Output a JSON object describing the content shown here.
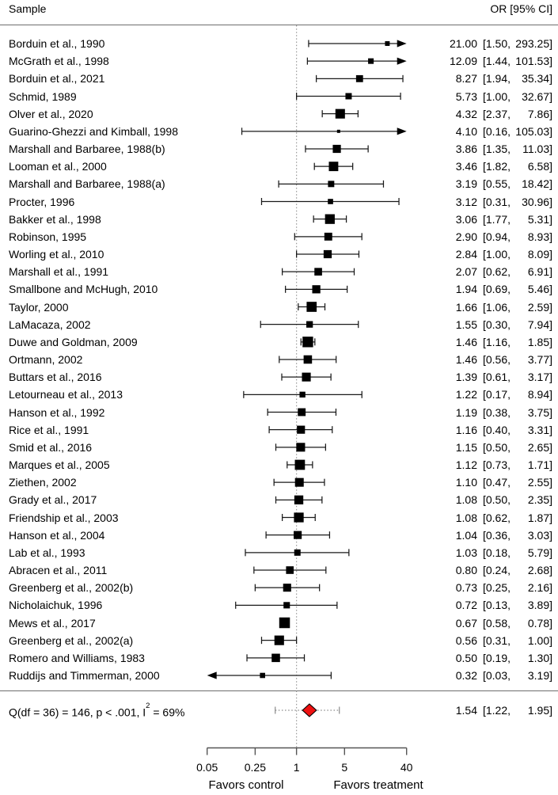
{
  "header": {
    "sample": "Sample",
    "or_ci": "OR [95% CI]"
  },
  "chart_data": {
    "type": "forest",
    "effect_measure": "OR",
    "x_scale": "log",
    "xlim": [
      0.05,
      40
    ],
    "x_ticks": [
      0.05,
      0.25,
      1,
      5,
      40
    ],
    "ref_line": 1,
    "x_axis_labels": {
      "left": "Favors control",
      "right": "Favors treatment"
    },
    "studies": [
      {
        "label": "Borduin et al., 1990",
        "or": 21.0,
        "ci_low": 1.5,
        "ci_high": 293.25
      },
      {
        "label": "McGrath et al., 1998",
        "or": 12.09,
        "ci_low": 1.44,
        "ci_high": 101.53
      },
      {
        "label": "Borduin et al., 2021",
        "or": 8.27,
        "ci_low": 1.94,
        "ci_high": 35.34
      },
      {
        "label": "Schmid, 1989",
        "or": 5.73,
        "ci_low": 1.0,
        "ci_high": 32.67
      },
      {
        "label": "Olver et al., 2020",
        "or": 4.32,
        "ci_low": 2.37,
        "ci_high": 7.86
      },
      {
        "label": "Guarino-Ghezzi and Kimball, 1998",
        "or": 4.1,
        "ci_low": 0.16,
        "ci_high": 105.03
      },
      {
        "label": "Marshall and Barbaree, 1988(b)",
        "or": 3.86,
        "ci_low": 1.35,
        "ci_high": 11.03
      },
      {
        "label": "Looman et al., 2000",
        "or": 3.46,
        "ci_low": 1.82,
        "ci_high": 6.58
      },
      {
        "label": "Marshall and Barbaree, 1988(a)",
        "or": 3.19,
        "ci_low": 0.55,
        "ci_high": 18.42
      },
      {
        "label": "Procter, 1996",
        "or": 3.12,
        "ci_low": 0.31,
        "ci_high": 30.96
      },
      {
        "label": "Bakker et al., 1998",
        "or": 3.06,
        "ci_low": 1.77,
        "ci_high": 5.31
      },
      {
        "label": "Robinson, 1995",
        "or": 2.9,
        "ci_low": 0.94,
        "ci_high": 8.93
      },
      {
        "label": "Worling et al., 2010",
        "or": 2.84,
        "ci_low": 1.0,
        "ci_high": 8.09
      },
      {
        "label": "Marshall et al., 1991",
        "or": 2.07,
        "ci_low": 0.62,
        "ci_high": 6.91
      },
      {
        "label": "Smallbone and McHugh, 2010",
        "or": 1.94,
        "ci_low": 0.69,
        "ci_high": 5.46
      },
      {
        "label": "Taylor, 2000",
        "or": 1.66,
        "ci_low": 1.06,
        "ci_high": 2.59
      },
      {
        "label": "LaMacaza, 2002",
        "or": 1.55,
        "ci_low": 0.3,
        "ci_high": 7.94
      },
      {
        "label": "Duwe and Goldman, 2009",
        "or": 1.46,
        "ci_low": 1.16,
        "ci_high": 1.85
      },
      {
        "label": "Ortmann, 2002",
        "or": 1.46,
        "ci_low": 0.56,
        "ci_high": 3.77
      },
      {
        "label": "Buttars et al., 2016",
        "or": 1.39,
        "ci_low": 0.61,
        "ci_high": 3.17
      },
      {
        "label": "Letourneau et al., 2013",
        "or": 1.22,
        "ci_low": 0.17,
        "ci_high": 8.94
      },
      {
        "label": "Hanson et al., 1992",
        "or": 1.19,
        "ci_low": 0.38,
        "ci_high": 3.75
      },
      {
        "label": "Rice et al., 1991",
        "or": 1.16,
        "ci_low": 0.4,
        "ci_high": 3.31
      },
      {
        "label": "Smid et al., 2016",
        "or": 1.15,
        "ci_low": 0.5,
        "ci_high": 2.65
      },
      {
        "label": "Marques et al., 2005",
        "or": 1.12,
        "ci_low": 0.73,
        "ci_high": 1.71
      },
      {
        "label": "Ziethen, 2002",
        "or": 1.1,
        "ci_low": 0.47,
        "ci_high": 2.55
      },
      {
        "label": "Grady et al., 2017",
        "or": 1.08,
        "ci_low": 0.5,
        "ci_high": 2.35
      },
      {
        "label": "Friendship et al., 2003",
        "or": 1.08,
        "ci_low": 0.62,
        "ci_high": 1.87
      },
      {
        "label": "Hanson et al., 2004",
        "or": 1.04,
        "ci_low": 0.36,
        "ci_high": 3.03
      },
      {
        "label": "Lab et al., 1993",
        "or": 1.03,
        "ci_low": 0.18,
        "ci_high": 5.79
      },
      {
        "label": "Abracen et al., 2011",
        "or": 0.8,
        "ci_low": 0.24,
        "ci_high": 2.68
      },
      {
        "label": "Greenberg et al., 2002(b)",
        "or": 0.73,
        "ci_low": 0.25,
        "ci_high": 2.16
      },
      {
        "label": "Nicholaichuk, 1996",
        "or": 0.72,
        "ci_low": 0.13,
        "ci_high": 3.89
      },
      {
        "label": "Mews et al., 2017",
        "or": 0.67,
        "ci_low": 0.58,
        "ci_high": 0.78
      },
      {
        "label": "Greenberg et al., 2002(a)",
        "or": 0.56,
        "ci_low": 0.31,
        "ci_high": 1.0
      },
      {
        "label": "Romero and Williams, 1983",
        "or": 0.5,
        "ci_low": 0.19,
        "ci_high": 1.3
      },
      {
        "label": "Ruddijs and Timmerman, 2000",
        "or": 0.32,
        "ci_low": 0.03,
        "ci_high": 3.19
      }
    ],
    "summary": {
      "het_pre": "Q(df = 36) = 146, p < .001, I",
      "het_sup": "2",
      "het_post": " = 69%",
      "or": 1.54,
      "ci_low": 1.22,
      "ci_high": 1.95,
      "pred_low": 0.49,
      "pred_high": 4.2
    }
  },
  "colors": {
    "text": "#000000",
    "marker": "#000000",
    "ci_line": "#1a1a1a",
    "ref_line": "#999999",
    "rule": "#6e6e6e",
    "axis": "#555555",
    "diamond_fill": "#ee1111",
    "diamond_stroke": "#000000",
    "pred_interval": "#8a8a8a"
  }
}
